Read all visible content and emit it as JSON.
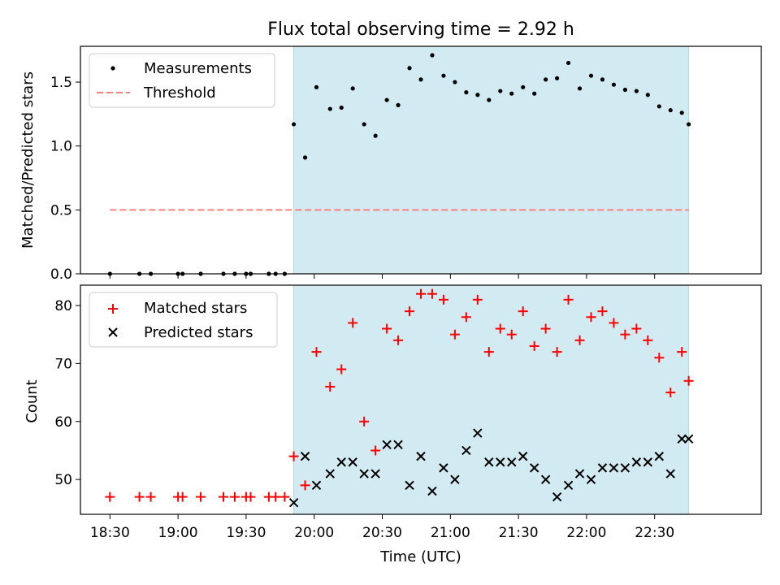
{
  "chart_data": [
    {
      "type": "scatter",
      "title": "Flux total observing time = 2.92 h",
      "xlabel": "",
      "ylabel": "Matched/Predicted stars",
      "ylim": [
        0,
        1.78
      ],
      "xlim": [
        "18:17",
        "23:17"
      ],
      "yticks": [
        0.0,
        0.5,
        1.0,
        1.5
      ],
      "ytick_labels": [
        "0.0",
        "0.5",
        "1.0",
        "1.5"
      ],
      "x_tick_labels_shown": false,
      "legend_location": "upper-left",
      "shaded_region": {
        "x_start": "19:51",
        "x_end": "22:45",
        "color": "#add8e6"
      },
      "series": [
        {
          "name": "Measurements",
          "marker": "dot",
          "color": "#000000",
          "x": [
            "18:30",
            "18:43",
            "18:48",
            "19:00",
            "19:02",
            "19:10",
            "19:20",
            "19:25",
            "19:30",
            "19:32",
            "19:40",
            "19:43",
            "19:47",
            "19:51",
            "19:56",
            "20:01",
            "20:07",
            "20:12",
            "20:17",
            "20:22",
            "20:27",
            "20:32",
            "20:37",
            "20:42",
            "20:47",
            "20:52",
            "20:57",
            "21:02",
            "21:07",
            "21:12",
            "21:17",
            "21:22",
            "21:27",
            "21:32",
            "21:37",
            "21:42",
            "21:47",
            "21:52",
            "21:57",
            "22:02",
            "22:07",
            "22:12",
            "22:17",
            "22:22",
            "22:27",
            "22:32",
            "22:37",
            "22:42",
            "22:45"
          ],
          "y": [
            0.0,
            0.0,
            0.0,
            0.0,
            0.0,
            0.0,
            0.0,
            0.0,
            0.0,
            0.0,
            0.0,
            0.0,
            0.0,
            1.17,
            0.91,
            1.46,
            1.29,
            1.3,
            1.45,
            1.17,
            1.08,
            1.36,
            1.32,
            1.61,
            1.52,
            1.71,
            1.55,
            1.5,
            1.42,
            1.4,
            1.36,
            1.43,
            1.41,
            1.46,
            1.41,
            1.52,
            1.53,
            1.65,
            1.45,
            1.55,
            1.52,
            1.48,
            1.44,
            1.43,
            1.4,
            1.31,
            1.28,
            1.26,
            1.17
          ]
        },
        {
          "name": "Threshold",
          "marker": "dashed-line",
          "color": "#ff7f7f",
          "x": [
            "18:30",
            "22:45"
          ],
          "y": [
            0.5,
            0.5
          ]
        }
      ]
    },
    {
      "type": "scatter",
      "title": "",
      "xlabel": "Time (UTC)",
      "ylabel": "Count",
      "ylim": [
        44,
        83.5
      ],
      "xlim": [
        "18:17",
        "23:17"
      ],
      "yticks": [
        50,
        60,
        70,
        80
      ],
      "ytick_labels": [
        "50",
        "60",
        "70",
        "80"
      ],
      "x_tick_labels": [
        "18:30",
        "19:00",
        "19:30",
        "20:00",
        "20:30",
        "21:00",
        "21:30",
        "22:00",
        "22:30"
      ],
      "legend_location": "upper-left",
      "shaded_region": {
        "x_start": "19:51",
        "x_end": "22:45",
        "color": "#add8e6"
      },
      "series": [
        {
          "name": "Matched stars",
          "marker": "plus",
          "color": "#ff0000",
          "x": [
            "18:30",
            "18:43",
            "18:48",
            "19:00",
            "19:02",
            "19:10",
            "19:20",
            "19:25",
            "19:30",
            "19:32",
            "19:40",
            "19:43",
            "19:47",
            "19:51",
            "19:56",
            "20:01",
            "20:07",
            "20:12",
            "20:17",
            "20:22",
            "20:27",
            "20:32",
            "20:37",
            "20:42",
            "20:47",
            "20:52",
            "20:57",
            "21:02",
            "21:07",
            "21:12",
            "21:17",
            "21:22",
            "21:27",
            "21:32",
            "21:37",
            "21:42",
            "21:47",
            "21:52",
            "21:57",
            "22:02",
            "22:07",
            "22:12",
            "22:17",
            "22:22",
            "22:27",
            "22:32",
            "22:37",
            "22:42",
            "22:45"
          ],
          "y": [
            47,
            47,
            47,
            47,
            47,
            47,
            47,
            47,
            47,
            47,
            47,
            47,
            47,
            54,
            49,
            72,
            66,
            69,
            77,
            60,
            55,
            76,
            74,
            79,
            82,
            82,
            81,
            75,
            78,
            81,
            72,
            76,
            75,
            79,
            73,
            76,
            72,
            81,
            74,
            78,
            79,
            77,
            75,
            76,
            74,
            71,
            65,
            72,
            67
          ]
        },
        {
          "name": "Predicted stars",
          "marker": "x",
          "color": "#000000",
          "x": [
            "19:51",
            "19:56",
            "20:01",
            "20:07",
            "20:12",
            "20:17",
            "20:22",
            "20:27",
            "20:32",
            "20:37",
            "20:42",
            "20:47",
            "20:52",
            "20:57",
            "21:02",
            "21:07",
            "21:12",
            "21:17",
            "21:22",
            "21:27",
            "21:32",
            "21:37",
            "21:42",
            "21:47",
            "21:52",
            "21:57",
            "22:02",
            "22:07",
            "22:12",
            "22:17",
            "22:22",
            "22:27",
            "22:32",
            "22:37",
            "22:42",
            "22:45"
          ],
          "y": [
            46,
            54,
            49,
            51,
            53,
            53,
            51,
            51,
            56,
            56,
            49,
            54,
            48,
            52,
            50,
            55,
            58,
            53,
            53,
            53,
            54,
            52,
            50,
            47,
            49,
            51,
            50,
            52,
            52,
            52,
            53,
            53,
            54,
            51,
            57,
            57
          ]
        }
      ]
    }
  ]
}
